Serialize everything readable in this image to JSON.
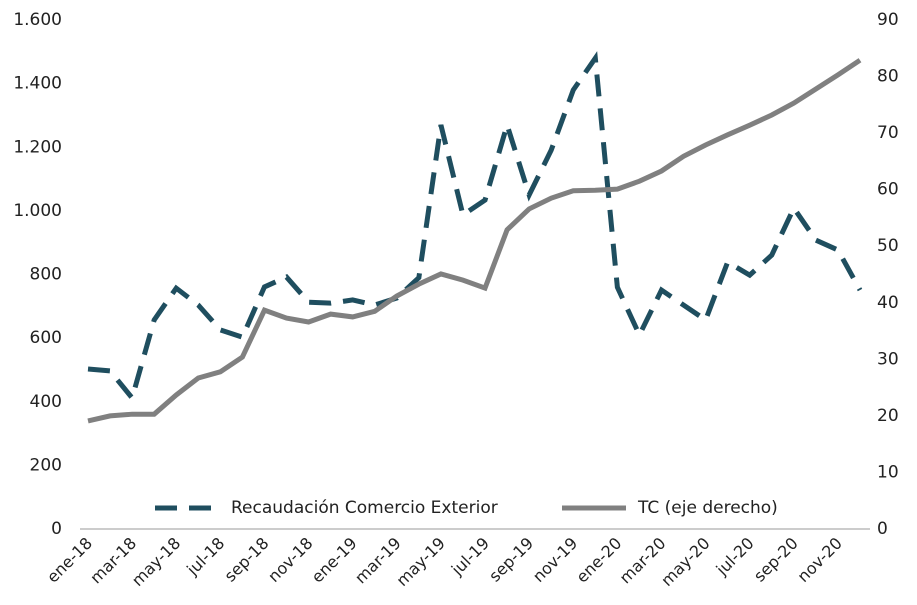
{
  "chart_data": {
    "type": "line",
    "categories": [
      "ene-18",
      null,
      "mar-18",
      null,
      "may-18",
      null,
      "jul-18",
      null,
      "sep-18",
      null,
      "nov-18",
      null,
      "ene-19",
      null,
      "mar-19",
      null,
      "may-19",
      null,
      "jul-19",
      null,
      "sep-19",
      null,
      "nov-19",
      null,
      "ene-20",
      null,
      "mar-20",
      null,
      "may-20",
      null,
      "jul-20",
      null,
      "sep-20",
      null,
      "nov-20",
      null
    ],
    "series": [
      {
        "name": "Recaudación Comercio Exterior",
        "color": "#1f4e5f",
        "dashed": true,
        "values": [
          503,
          497,
          412,
          657,
          757,
          704,
          626,
          603,
          761,
          792,
          713,
          710,
          720,
          704,
          726,
          790,
          1270,
          987,
          1034,
          1270,
          1050,
          1191,
          1380,
          1480,
          760,
          610,
          751,
          704,
          657,
          839,
          798,
          861,
          1009,
          908,
          877,
          751
        ]
      },
      {
        "name": "TC (eje derecho)",
        "color": "#808080",
        "axis": "y2",
        "values": [
          19.1,
          20.0,
          20.3,
          20.3,
          23.7,
          26.7,
          27.8,
          30.4,
          38.7,
          37.3,
          36.6,
          38.0,
          37.5,
          38.5,
          41.2,
          43.3,
          45.1,
          44.0,
          42.6,
          52.9,
          56.6,
          58.5,
          59.8,
          59.9,
          60.1,
          61.5,
          63.3,
          65.9,
          67.9,
          69.7,
          71.4,
          73.2,
          75.3,
          77.8,
          80.3,
          82.9
        ]
      }
    ],
    "ylim": [
      0,
      1600
    ],
    "yticks": [
      0,
      200,
      400,
      600,
      800,
      {
        "value": 1000,
        "label": "1.000"
      },
      {
        "value": 1200,
        "label": "1.200"
      },
      {
        "value": 1400,
        "label": "1.400"
      },
      {
        "value": 1600,
        "label": "1.600"
      }
    ],
    "y2lim": [
      0,
      90
    ],
    "y2ticks": [
      0,
      10,
      20,
      30,
      40,
      50,
      60,
      70,
      80,
      90
    ],
    "grid": false,
    "legend": "lower center"
  }
}
